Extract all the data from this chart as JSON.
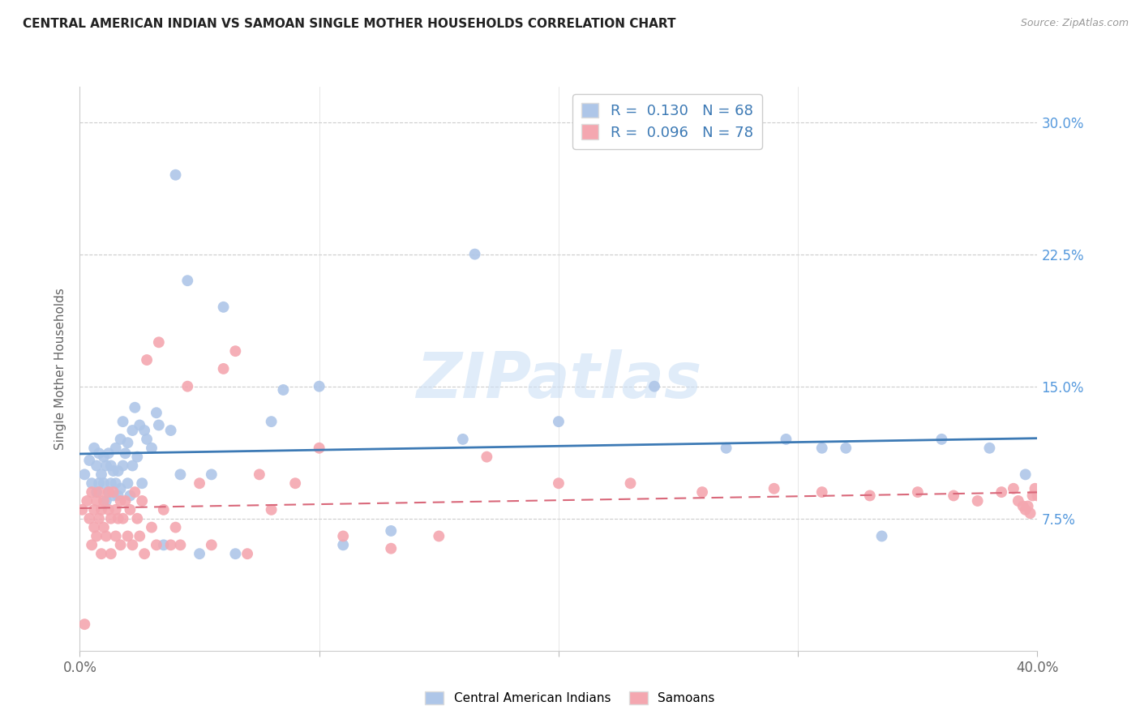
{
  "title": "CENTRAL AMERICAN INDIAN VS SAMOAN SINGLE MOTHER HOUSEHOLDS CORRELATION CHART",
  "source": "Source: ZipAtlas.com",
  "ylabel": "Single Mother Households",
  "watermark": "ZIPatlas",
  "xlim": [
    0.0,
    0.4
  ],
  "ylim": [
    0.0,
    0.32
  ],
  "yticks": [
    0.0,
    0.075,
    0.15,
    0.225,
    0.3
  ],
  "yticklabels_right": [
    "",
    "7.5%",
    "15.0%",
    "22.5%",
    "30.0%"
  ],
  "xtick_left_label": "0.0%",
  "xtick_right_label": "40.0%",
  "blue_R": 0.13,
  "blue_N": 68,
  "pink_R": 0.096,
  "pink_N": 78,
  "blue_color": "#aec6e8",
  "pink_color": "#f4a7b0",
  "blue_line_color": "#3d7ab5",
  "pink_line_color": "#d9687a",
  "legend_label_blue": "Central American Indians",
  "legend_label_pink": "Samoans",
  "blue_x": [
    0.002,
    0.004,
    0.005,
    0.006,
    0.007,
    0.007,
    0.008,
    0.008,
    0.009,
    0.01,
    0.01,
    0.011,
    0.011,
    0.012,
    0.012,
    0.013,
    0.013,
    0.014,
    0.014,
    0.015,
    0.015,
    0.016,
    0.016,
    0.017,
    0.017,
    0.018,
    0.018,
    0.019,
    0.02,
    0.02,
    0.021,
    0.022,
    0.022,
    0.023,
    0.024,
    0.025,
    0.026,
    0.027,
    0.028,
    0.03,
    0.032,
    0.033,
    0.035,
    0.038,
    0.04,
    0.042,
    0.045,
    0.05,
    0.055,
    0.06,
    0.065,
    0.08,
    0.085,
    0.1,
    0.11,
    0.13,
    0.16,
    0.165,
    0.2,
    0.24,
    0.27,
    0.295,
    0.31,
    0.32,
    0.335,
    0.36,
    0.38,
    0.395
  ],
  "blue_y": [
    0.1,
    0.108,
    0.095,
    0.115,
    0.09,
    0.105,
    0.095,
    0.112,
    0.1,
    0.095,
    0.11,
    0.085,
    0.105,
    0.09,
    0.112,
    0.095,
    0.105,
    0.088,
    0.102,
    0.095,
    0.115,
    0.088,
    0.102,
    0.12,
    0.092,
    0.13,
    0.105,
    0.112,
    0.095,
    0.118,
    0.088,
    0.125,
    0.105,
    0.138,
    0.11,
    0.128,
    0.095,
    0.125,
    0.12,
    0.115,
    0.135,
    0.128,
    0.06,
    0.125,
    0.27,
    0.1,
    0.21,
    0.055,
    0.1,
    0.195,
    0.055,
    0.13,
    0.148,
    0.15,
    0.06,
    0.068,
    0.12,
    0.225,
    0.13,
    0.15,
    0.115,
    0.12,
    0.115,
    0.115,
    0.065,
    0.12,
    0.115,
    0.1
  ],
  "pink_x": [
    0.001,
    0.002,
    0.003,
    0.004,
    0.005,
    0.005,
    0.006,
    0.006,
    0.007,
    0.007,
    0.008,
    0.008,
    0.009,
    0.009,
    0.01,
    0.01,
    0.011,
    0.012,
    0.012,
    0.013,
    0.013,
    0.014,
    0.015,
    0.015,
    0.016,
    0.017,
    0.017,
    0.018,
    0.019,
    0.02,
    0.021,
    0.022,
    0.023,
    0.024,
    0.025,
    0.026,
    0.027,
    0.028,
    0.03,
    0.032,
    0.033,
    0.035,
    0.038,
    0.04,
    0.042,
    0.045,
    0.05,
    0.055,
    0.06,
    0.065,
    0.07,
    0.075,
    0.08,
    0.09,
    0.1,
    0.11,
    0.13,
    0.15,
    0.17,
    0.2,
    0.23,
    0.26,
    0.29,
    0.31,
    0.33,
    0.35,
    0.365,
    0.375,
    0.385,
    0.39,
    0.392,
    0.394,
    0.395,
    0.396,
    0.397,
    0.398,
    0.399,
    0.4
  ],
  "pink_y": [
    0.08,
    0.015,
    0.085,
    0.075,
    0.09,
    0.06,
    0.08,
    0.07,
    0.085,
    0.065,
    0.075,
    0.09,
    0.055,
    0.08,
    0.07,
    0.085,
    0.065,
    0.08,
    0.09,
    0.055,
    0.075,
    0.09,
    0.065,
    0.08,
    0.075,
    0.085,
    0.06,
    0.075,
    0.085,
    0.065,
    0.08,
    0.06,
    0.09,
    0.075,
    0.065,
    0.085,
    0.055,
    0.165,
    0.07,
    0.06,
    0.175,
    0.08,
    0.06,
    0.07,
    0.06,
    0.15,
    0.095,
    0.06,
    0.16,
    0.17,
    0.055,
    0.1,
    0.08,
    0.095,
    0.115,
    0.065,
    0.058,
    0.065,
    0.11,
    0.095,
    0.095,
    0.09,
    0.092,
    0.09,
    0.088,
    0.09,
    0.088,
    0.085,
    0.09,
    0.092,
    0.085,
    0.082,
    0.08,
    0.082,
    0.078,
    0.088,
    0.092,
    0.088
  ]
}
